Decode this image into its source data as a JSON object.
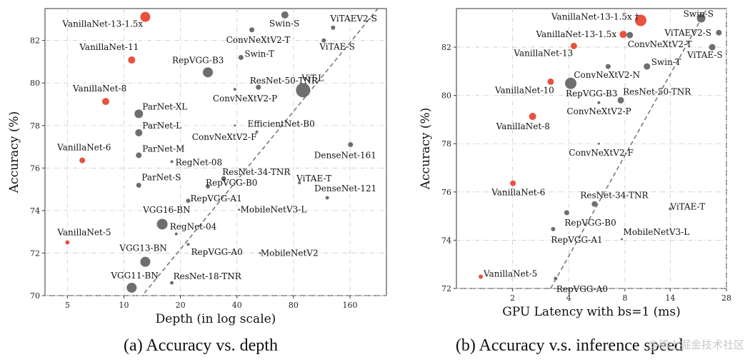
{
  "colors": {
    "highlight": "#e8523f",
    "other": "#6e6e6e",
    "trend": "#7a7a7a",
    "grid": "#c9c9c9"
  },
  "chart_data": [
    {
      "type": "scatter",
      "caption": "(a) Accuracy vs. depth",
      "xlabel": "Depth (in log scale)",
      "ylabel": "Accuracy (%)",
      "xscale": "log",
      "xlim": [
        3.8,
        250
      ],
      "ylim": [
        70,
        83.5
      ],
      "xticks": [
        5,
        10,
        20,
        40,
        80,
        160
      ],
      "yticks": [
        70,
        72,
        74,
        76,
        78,
        80,
        82
      ],
      "grid": true,
      "trend_line": [
        [
          11.5,
          69.6
        ],
        [
          230,
          83.6
        ]
      ],
      "points": [
        {
          "name": "VanillaNet-5",
          "x": 5,
          "y": 72.5,
          "size": 3,
          "highlight": true
        },
        {
          "name": "VanillaNet-6",
          "x": 6,
          "y": 76.36,
          "size": 4,
          "highlight": true
        },
        {
          "name": "VanillaNet-8",
          "x": 8,
          "y": 79.13,
          "size": 5,
          "highlight": true
        },
        {
          "name": "VanillaNet-11",
          "x": 11,
          "y": 81.08,
          "size": 5,
          "highlight": true
        },
        {
          "name": "VanillaNet-13-1.5x",
          "x": 13,
          "y": 83.11,
          "size": 7,
          "highlight": true
        },
        {
          "name": "Swin-S",
          "x": 72,
          "y": 83.2,
          "size": 5
        },
        {
          "name": "ViTAEV2-S",
          "x": 130,
          "y": 82.6,
          "size": 3
        },
        {
          "name": "ConvNeXtV2-T",
          "x": 48,
          "y": 82.5,
          "size": 3.5
        },
        {
          "name": "ViTAE-S",
          "x": 116,
          "y": 82.0,
          "size": 3
        },
        {
          "name": "Swin-T",
          "x": 42,
          "y": 81.2,
          "size": 3.5
        },
        {
          "name": "RepVGG-B3",
          "x": 28,
          "y": 80.5,
          "size": 7
        },
        {
          "name": "ResNet-50-TNR",
          "x": 52,
          "y": 79.8,
          "size": 3.5
        },
        {
          "name": "ViT-L",
          "x": 90,
          "y": 79.66,
          "size": 10
        },
        {
          "name": "ConvNeXtV2-P",
          "x": 39,
          "y": 79.7,
          "size": 2
        },
        {
          "name": "ParNet-XL",
          "x": 12,
          "y": 78.55,
          "size": 6
        },
        {
          "name": "ParNet-L",
          "x": 12,
          "y": 77.66,
          "size": 5
        },
        {
          "name": "EfficientNet-B0",
          "x": 51,
          "y": 77.7,
          "size": 2
        },
        {
          "name": "ConvNeXtV2-F",
          "x": 39,
          "y": 78.0,
          "size": 1.5
        },
        {
          "name": "ParNet-M",
          "x": 12,
          "y": 76.6,
          "size": 4
        },
        {
          "name": "RegNet-08",
          "x": 18,
          "y": 76.3,
          "size": 2
        },
        {
          "name": "DenseNet-161",
          "x": 161,
          "y": 77.1,
          "size": 3.5
        },
        {
          "name": "ResNet-34-TNR",
          "x": 34,
          "y": 75.5,
          "size": 3.5
        },
        {
          "name": "RepVGG-B0",
          "x": 28,
          "y": 75.14,
          "size": 3
        },
        {
          "name": "ViTAE-T",
          "x": 86,
          "y": 75.3,
          "size": 2
        },
        {
          "name": "ParNet-S",
          "x": 12,
          "y": 75.19,
          "size": 3.5
        },
        {
          "name": "DenseNet-121",
          "x": 121,
          "y": 74.6,
          "size": 2.5
        },
        {
          "name": "RepVGG-A1",
          "x": 22,
          "y": 74.46,
          "size": 3
        },
        {
          "name": "MobileNetV3-L",
          "x": 41,
          "y": 74.04,
          "size": 1.5
        },
        {
          "name": "VGG16-BN",
          "x": 16,
          "y": 73.36,
          "size": 7.5
        },
        {
          "name": "RegNet-04",
          "x": 19,
          "y": 72.9,
          "size": 2
        },
        {
          "name": "RepVGG-A0",
          "x": 22,
          "y": 72.41,
          "size": 2
        },
        {
          "name": "MobileNetV2",
          "x": 53,
          "y": 72.0,
          "size": 1.5
        },
        {
          "name": "VGG13-BN",
          "x": 13,
          "y": 71.59,
          "size": 7
        },
        {
          "name": "ResNet-18-TNR",
          "x": 18,
          "y": 70.6,
          "size": 2.5
        },
        {
          "name": "VGG11-BN",
          "x": 11,
          "y": 70.37,
          "size": 7
        }
      ]
    },
    {
      "type": "scatter",
      "caption": "(b) Accuracy v.s. inference speed",
      "xlabel": "GPU Latency with bs=1 (ms)",
      "ylabel": "Accuracy (%)",
      "xscale": "log",
      "xlim": [
        1.0,
        28
      ],
      "ylim": [
        72,
        83.6
      ],
      "xticks": [
        2,
        4,
        8,
        14,
        28
      ],
      "yticks": [
        72,
        74,
        76,
        78,
        80,
        82
      ],
      "grid": true,
      "trend_line": [
        [
          3.2,
          72.0
        ],
        [
          22,
          83.6
        ]
      ],
      "points": [
        {
          "name": "VanillaNet-5",
          "x": 1.35,
          "y": 72.49,
          "size": 3,
          "highlight": true
        },
        {
          "name": "VanillaNet-6",
          "x": 2.01,
          "y": 76.36,
          "size": 4,
          "highlight": true
        },
        {
          "name": "VanillaNet-8",
          "x": 2.56,
          "y": 79.13,
          "size": 5,
          "highlight": true
        },
        {
          "name": "VanillaNet-10",
          "x": 3.2,
          "y": 80.57,
          "size": 4.5,
          "highlight": true
        },
        {
          "name": "VanillaNet-13",
          "x": 4.26,
          "y": 82.05,
          "size": 4.5,
          "highlight": true
        },
        {
          "name": "VanillaNet-13-1.5x",
          "x": 7.83,
          "y": 82.53,
          "size": 5,
          "highlight": true
        },
        {
          "name": "VanillaNet-13-1.5x †",
          "x": 9.72,
          "y": 83.11,
          "size": 8,
          "highlight": true
        },
        {
          "name": "Swin-S",
          "x": 20.5,
          "y": 83.2,
          "size": 6
        },
        {
          "name": "ConvNeXtV2-T",
          "x": 8.5,
          "y": 82.5,
          "size": 4.5
        },
        {
          "name": "ViTAEV2-S",
          "x": 25.5,
          "y": 82.6,
          "size": 4
        },
        {
          "name": "ViTAE-S",
          "x": 23.5,
          "y": 82.0,
          "size": 4.5
        },
        {
          "name": "ConvNeXtV2-N",
          "x": 6.5,
          "y": 81.2,
          "size": 3.5
        },
        {
          "name": "Swin-T",
          "x": 10.5,
          "y": 81.2,
          "size": 4.5
        },
        {
          "name": "RepVGG-B3",
          "x": 4.1,
          "y": 80.5,
          "size": 8
        },
        {
          "name": "ResNet-50-TNR",
          "x": 7.6,
          "y": 79.8,
          "size": 4.5
        },
        {
          "name": "ConvNeXtV2-P",
          "x": 5.8,
          "y": 79.7,
          "size": 2
        },
        {
          "name": "ConvNeXtV2-F",
          "x": 5.8,
          "y": 78.0,
          "size": 1.5
        },
        {
          "name": "ResNet-34-TNR",
          "x": 5.5,
          "y": 75.5,
          "size": 4
        },
        {
          "name": "ViTAE-T",
          "x": 14,
          "y": 75.3,
          "size": 2
        },
        {
          "name": "RepVGG-B0",
          "x": 3.9,
          "y": 75.14,
          "size": 3.5
        },
        {
          "name": "RepVGG-A1",
          "x": 3.3,
          "y": 74.46,
          "size": 3
        },
        {
          "name": "MobileNetV3-L",
          "x": 7.7,
          "y": 74.04,
          "size": 1.5
        },
        {
          "name": "RepVGG-A0",
          "x": 3.4,
          "y": 72.41,
          "size": 2.5
        }
      ]
    }
  ],
  "watermark": "@稀土掘金技术社区"
}
